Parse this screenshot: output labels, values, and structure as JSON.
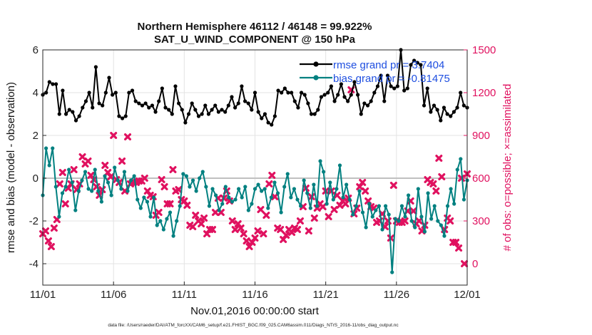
{
  "chart_data": {
    "type": "line",
    "title": "Northern Hemisphere 46112 / 46148 = 99.922%",
    "subtitle": "SAT_U_WIND_COMPONENT @ 150 hPa",
    "xlabel": "Nov.01,2016 00:00:00 start",
    "ylabel_left": "rmse and bias (model - observation)",
    "ylabel_right": "# of obs: o=possible; ×=assimilated",
    "x_ticks": [
      "11/01",
      "11/06",
      "11/11",
      "11/16",
      "11/21",
      "11/26",
      "12/01"
    ],
    "x_range_days": [
      0,
      30
    ],
    "ylim_left": [
      -5,
      6
    ],
    "yticks_left": [
      "-4",
      "-2",
      "0",
      "2",
      "4",
      "6"
    ],
    "ylim_right": [
      -150,
      1500
    ],
    "yticks_right": [
      "0",
      "300",
      "600",
      "900",
      "1200",
      "1500"
    ],
    "grid": true,
    "legend_position": "top-right",
    "colors": {
      "rmse": "#000000",
      "bias": "#008080",
      "obs": "#e0115f",
      "zero_line": "#c0c0c0",
      "right_axis": "#e0115f"
    },
    "series": [
      {
        "name": "rmse grand pr = 3.7404",
        "axis": "left",
        "values": [
          3.9,
          4.0,
          4.5,
          4.4,
          4.4,
          3.0,
          4.1,
          3.0,
          3.2,
          3.1,
          2.7,
          2.9,
          3.3,
          3.6,
          4.0,
          3.3,
          5.2,
          3.5,
          3.4,
          4.0,
          4.7,
          3.9,
          4.0,
          2.9,
          2.8,
          2.9,
          4.0,
          4.1,
          3.6,
          3.5,
          3.4,
          3.5,
          3.3,
          3.4,
          3.1,
          3.6,
          4.2,
          3.3,
          3.2,
          3.0,
          4.3,
          3.5,
          3.2,
          2.6,
          3.0,
          3.5,
          3.2,
          2.9,
          3.0,
          3.4,
          3.0,
          3.2,
          3.4,
          3.1,
          3.2,
          3.1,
          3.4,
          3.8,
          3.3,
          3.5,
          4.3,
          3.6,
          3.5,
          3.2,
          4.0,
          3.1,
          2.8,
          3.0,
          2.6,
          2.5,
          2.9,
          4.1,
          4.0,
          4.2,
          4.0,
          4.0,
          3.6,
          3.3,
          4.0,
          3.9,
          3.5,
          3.0,
          3.0,
          3.2,
          3.8,
          3.9,
          4.0,
          4.3,
          3.6,
          3.9,
          4.4,
          3.8,
          3.6,
          3.9,
          4.5,
          3.9,
          3.0,
          3.5,
          3.4,
          3.6,
          4.0,
          4.3,
          4.8,
          3.6,
          4.8,
          4.3,
          4.2,
          4.3,
          6.0,
          4.1,
          4.2,
          5.3,
          5.5,
          5.4,
          5.3,
          3.4,
          4.2,
          3.1,
          3.4,
          3.2,
          2.7,
          3.3,
          3.0,
          2.9,
          3.1,
          3.3,
          4.0,
          3.4,
          3.3
        ]
      },
      {
        "name": "bias grand pr = -0.81475",
        "axis": "left",
        "values": [
          -0.8,
          1.4,
          0.6,
          1.4,
          -0.4,
          -1.8,
          -0.7,
          -0.4,
          0.4,
          -0.2,
          -1.5,
          -0.6,
          -0.1,
          0.3,
          -0.5,
          -0.6,
          0.4,
          -0.6,
          -1.1,
          0.1,
          -0.2,
          -0.8,
          0.5,
          -0.1,
          -0.5,
          0.3,
          -0.6,
          -0.1,
          0.1,
          -1.0,
          -1.4,
          -0.9,
          -1.1,
          -1.8,
          -0.9,
          -2.2,
          -2.0,
          -2.4,
          -1.9,
          -1.6,
          -2.7,
          -2.0,
          -1.3,
          0.2,
          0.1,
          -0.4,
          -0.1,
          -0.6,
          0.0,
          0.3,
          -0.4,
          -1.3,
          -0.5,
          -0.8,
          -1.5,
          -1.2,
          -0.4,
          -0.9,
          -1.1,
          -1.0,
          -0.5,
          -0.9,
          -0.4,
          -1.5,
          -1.2,
          -0.5,
          -0.3,
          -0.6,
          -0.5,
          -1.4,
          -0.9,
          -0.2,
          -0.7,
          -1.6,
          -0.4,
          0.2,
          -0.9,
          -0.5,
          -1.0,
          -1.3,
          -0.1,
          -0.7,
          -1.4,
          -0.3,
          -1.3,
          0.8,
          0.3,
          -1.2,
          -0.2,
          -1.0,
          -0.5,
          0.6,
          -0.9,
          -0.3,
          -1.0,
          -1.7,
          -1.3,
          -0.6,
          -1.6,
          -2.3,
          -1.2,
          -1.8,
          -1.5,
          -1.3,
          -2.4,
          -1.3,
          -1.7,
          -4.4,
          -1.9,
          -2.0,
          -1.3,
          -1.8,
          -0.8,
          -2.0,
          -2.3,
          -0.5,
          -1.8,
          -2.5,
          -0.7,
          -1.9,
          -1.3,
          -2.0,
          -2.2,
          -2.7,
          -1.3,
          -0.5,
          -1.2,
          0.4,
          0.9,
          -1.0,
          -0.1
        ]
      },
      {
        "name": "obs assimilated",
        "axis": "right",
        "marker": "x",
        "values": [
          210,
          230,
          160,
          120,
          250,
          310,
          560,
          640,
          420,
          530,
          560,
          660,
          520,
          560,
          750,
          700,
          720,
          620,
          590,
          540,
          480,
          520,
          690,
          640,
          610,
          900,
          590,
          570,
          720,
          510,
          890,
          560,
          570,
          570,
          580,
          580,
          600,
          510,
          480,
          470,
          340,
          360,
          590,
          540,
          420,
          420,
          660,
          510,
          520,
          450,
          440,
          410,
          270,
          260,
          340,
          300,
          280,
          320,
          210,
          240,
          240,
          360,
          460,
          360,
          460,
          510,
          440,
          300,
          240,
          280,
          250,
          210,
          160,
          120,
          150,
          180,
          230,
          380,
          210,
          340,
          560,
          620,
          470,
          250,
          240,
          170,
          200,
          240,
          220,
          250,
          240,
          300,
          400,
          530,
          230,
          470,
          320,
          390,
          420,
          400,
          510,
          330,
          510,
          380,
          480,
          410,
          440,
          420,
          460,
          1220,
          350,
          390,
          540,
          570,
          510,
          440,
          400,
          390,
          290,
          300,
          350,
          260,
          300,
          180,
          550,
          300,
          290,
          290,
          300,
          370,
          440,
          370,
          280,
          300,
          230,
          270,
          590,
          570,
          560,
          510,
          740,
          610,
          240,
          320,
          300,
          150,
          150,
          110,
          600,
          0,
          630
        ]
      }
    ],
    "footer": "data file: /Users/raeder/DAI/ATM_forcXX/CAM6_setup/f.e21.FHIST_BGC.f09_025.CAM6assim.011/Diags_NTrS_2016-11/obs_diag_output.nc"
  }
}
